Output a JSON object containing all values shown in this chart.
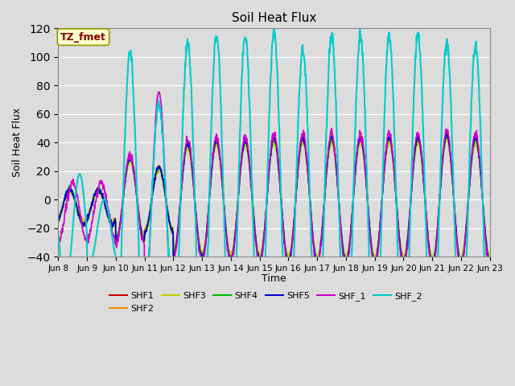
{
  "title": "Soil Heat Flux",
  "ylabel": "Soil Heat Flux",
  "xlabel": "Time",
  "annotation": "TZ_fmet",
  "annotation_fg": "#8B0000",
  "annotation_bg": "#FFFFCC",
  "annotation_edge": "#999900",
  "ylim": [
    -40,
    120
  ],
  "bg_color": "#DCDCDC",
  "series": [
    {
      "label": "SHF1",
      "color": "#CC0000",
      "lw": 1.2
    },
    {
      "label": "SHF2",
      "color": "#FF8800",
      "lw": 1.2
    },
    {
      "label": "SHF3",
      "color": "#CCCC00",
      "lw": 1.2
    },
    {
      "label": "SHF4",
      "color": "#00BB00",
      "lw": 1.2
    },
    {
      "label": "SHF5",
      "color": "#0000CC",
      "lw": 1.2
    },
    {
      "label": "SHF_1",
      "color": "#CC00CC",
      "lw": 1.2
    },
    {
      "label": "SHF_2",
      "color": "#00CCCC",
      "lw": 1.5
    }
  ],
  "xtick_labels": [
    "Jun 8",
    "Jun 9",
    "Jun 10",
    "Jun 11",
    "Jun 12",
    "Jun 13",
    "Jun 14",
    "Jun 15",
    "Jun 16",
    "Jun 17",
    "Jun 18",
    "Jun 19",
    "Jun 20",
    "Jun 21",
    "Jun 22",
    "Jun 23"
  ],
  "n_days": 15,
  "pts_per_day": 96
}
